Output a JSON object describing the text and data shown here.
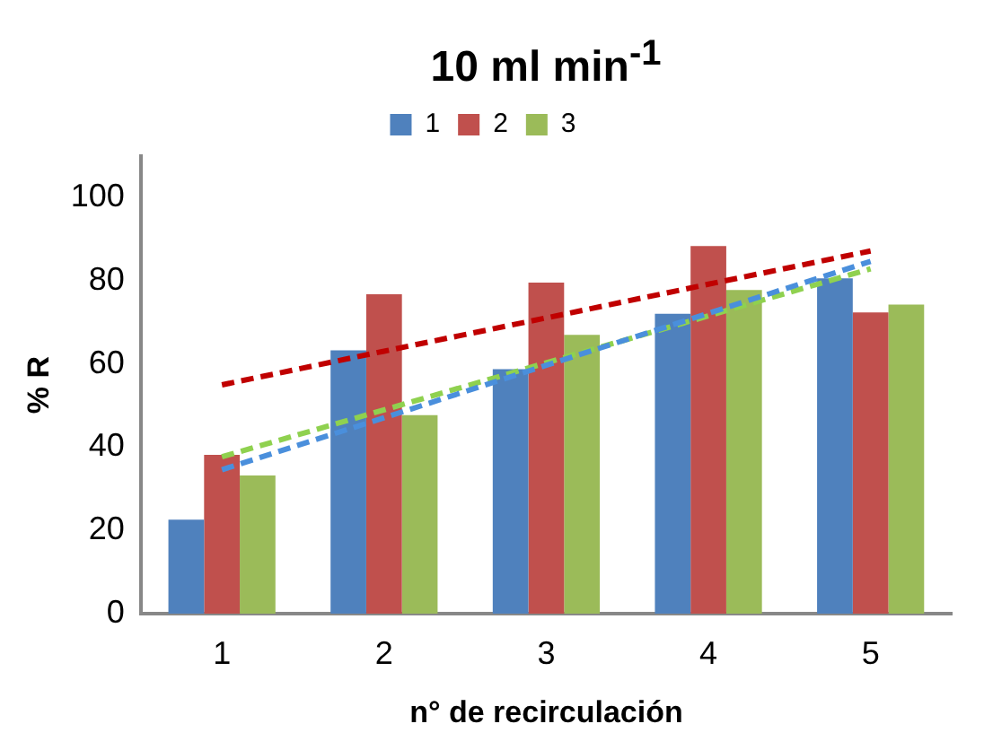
{
  "chart_data": {
    "type": "bar",
    "title": "10 ml min$^{-1}$",
    "xlabel": "n° de recirculación",
    "ylabel": "% R",
    "categories": [
      "1",
      "2",
      "3",
      "4",
      "5"
    ],
    "series": [
      {
        "name": "1",
        "color": "#4f81bd",
        "values": [
          22.6,
          63.3,
          58.8,
          72.1,
          80.6
        ]
      },
      {
        "name": "2",
        "color": "#c0504d",
        "values": [
          38.2,
          76.8,
          79.6,
          88.4,
          72.4
        ]
      },
      {
        "name": "3",
        "color": "#9bbb59",
        "values": [
          33.2,
          47.7,
          67,
          77.8,
          74.3
        ]
      },
      {
        "type": "line",
        "color": "#c00000",
        "line_style": "dashed",
        "values": [
          55,
          63.1,
          71.1,
          79.2,
          87.2
        ]
      },
      {
        "type": "line",
        "color": "#4a8fdc",
        "line_style": "dashed",
        "values": [
          34.6,
          47.1,
          59.7,
          72.2,
          84.7
        ]
      },
      {
        "type": "line",
        "color": "#8fd14f",
        "line_style": "dashed",
        "values": [
          37.7,
          49,
          60.3,
          71.6,
          82.9
        ]
      }
    ],
    "ylim": [
      0,
      110
    ],
    "yticks": [
      0,
      20,
      40,
      60,
      80,
      100
    ],
    "grid": false,
    "legend": "top",
    "marker": "none"
  }
}
